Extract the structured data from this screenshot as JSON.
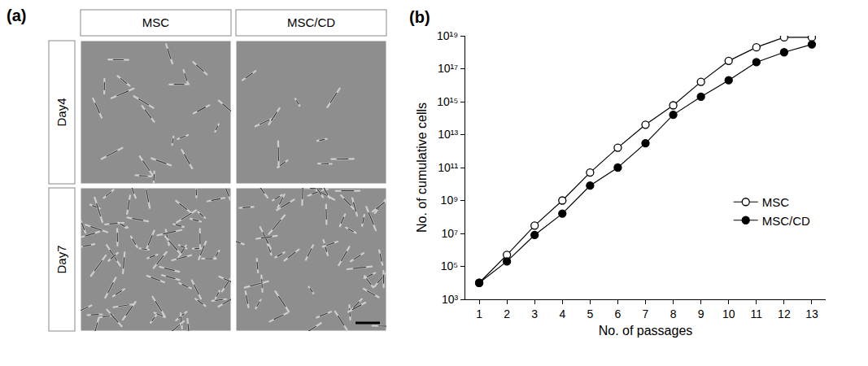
{
  "panel_a": {
    "label": "(a)",
    "columns": [
      "MSC",
      "MSC/CD"
    ],
    "rows": [
      "Day4",
      "Day7"
    ]
  },
  "chart_data": {
    "type": "line",
    "panel_label": "(b)",
    "x_label": "No. of passages",
    "y_label": "No. of cumulative cells",
    "x": [
      1,
      2,
      3,
      4,
      5,
      6,
      7,
      8,
      9,
      10,
      11,
      12,
      13
    ],
    "series": [
      {
        "name": "MSC",
        "color": "#000000",
        "marker": "open_circle",
        "values": [
          10000.0,
          500000.0,
          30000000.0,
          1000000000.0,
          50000000000.0,
          1600000000000.0,
          40000000000000.0,
          600000000000000.0,
          1.6e+16,
          3e+17,
          2e+18,
          8e+18,
          8e+18
        ]
      },
      {
        "name": "MSC/CD",
        "color": "#000000",
        "marker": "filled_circle",
        "values": [
          10000.0,
          200000.0,
          8000000.0,
          160000000.0,
          8000000000.0,
          100000000000.0,
          3000000000000.0,
          160000000000000.0,
          2000000000000000.0,
          2e+16,
          2.5e+17,
          1e+18,
          3e+18
        ]
      }
    ],
    "xlim": [
      0.5,
      13.5
    ],
    "xticks": [
      1,
      2,
      3,
      4,
      5,
      6,
      7,
      8,
      9,
      10,
      11,
      12,
      13
    ],
    "ylim": [
      1000.0,
      1e+19
    ],
    "yticks": [
      {
        "value": 1000.0,
        "label": "10³"
      },
      {
        "value": 100000.0,
        "label": "10⁵"
      },
      {
        "value": 10000000.0,
        "label": "10⁷"
      },
      {
        "value": 1000000000.0,
        "label": "10⁹"
      },
      {
        "value": 100000000000.0,
        "label": "10¹¹"
      },
      {
        "value": 10000000000000.0,
        "label": "10¹³"
      },
      {
        "value": 1000000000000000.0,
        "label": "10¹⁵"
      },
      {
        "value": 1e+17,
        "label": "10¹⁷"
      },
      {
        "value": 1e+19,
        "label": "10¹⁹"
      }
    ],
    "log": "y",
    "grid": false,
    "legend": "lower right"
  }
}
